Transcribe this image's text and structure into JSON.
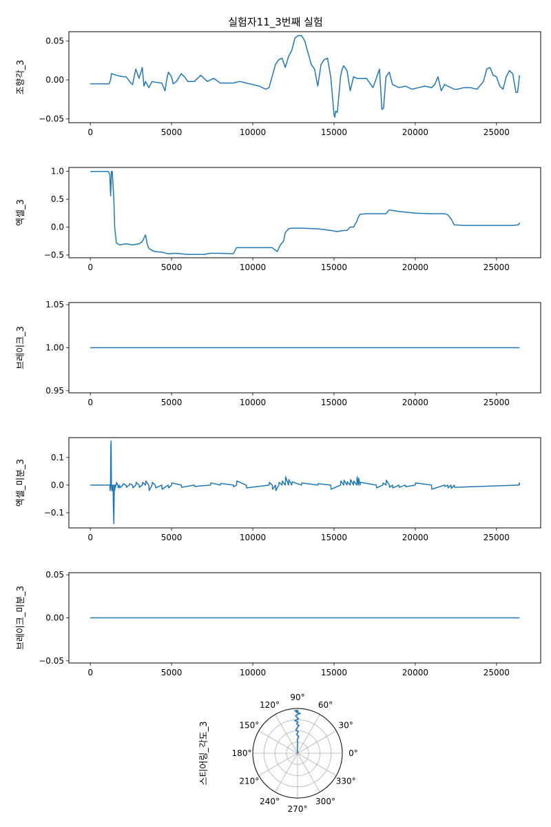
{
  "figure_title": "실험자11_3번째 실험",
  "chart_data": [
    {
      "type": "line",
      "ylabel": "조향각_3",
      "xlim": [
        -1320,
        27720
      ],
      "ylim": [
        -0.055,
        0.062
      ],
      "xticks": [
        0,
        5000,
        10000,
        15000,
        20000,
        25000
      ],
      "xtick_labels": [
        "0",
        "5000",
        "10000",
        "15000",
        "20000",
        "25000"
      ],
      "yticks": [
        -0.05,
        0.0,
        0.05
      ],
      "ytick_labels": [
        "−0.05",
        "0.00",
        "0.05"
      ],
      "color": "#1f77b4",
      "series": [
        {
          "x": [
            0,
            1150,
            1250,
            1300,
            1600,
            2000,
            2200,
            2500,
            2600,
            2700,
            2800,
            3000,
            3200,
            3300,
            3400,
            3600,
            3800,
            4000,
            4400,
            4600,
            4700,
            4800,
            5000,
            5100,
            5300,
            5600,
            5800,
            6000,
            6400,
            6800,
            7200,
            7600,
            8000,
            8400,
            8800,
            9200,
            9600,
            10000,
            10400,
            10800,
            11000,
            11200,
            11400,
            11600,
            11800,
            12000,
            12200,
            12400,
            12600,
            12800,
            13000,
            13200,
            13600,
            13800,
            14000,
            14200,
            14400,
            14600,
            14800,
            15000,
            15050,
            15100,
            15200,
            15300,
            15400,
            15500,
            15600,
            15800,
            16000,
            16200,
            16400,
            16600,
            17000,
            17400,
            17800,
            17950,
            18050,
            18200,
            18400,
            18600,
            19000,
            19400,
            19800,
            20200,
            20600,
            21000,
            21200,
            21400,
            21600,
            21800,
            22000,
            22200,
            22400,
            22600,
            23000,
            23400,
            23800,
            24200,
            24400,
            24600,
            24800,
            25000,
            25200,
            25400,
            25600,
            25800,
            26000,
            26200,
            26300,
            26420
          ],
          "y": [
            -0.005,
            -0.005,
            0.0,
            0.008,
            0.006,
            0.004,
            0.004,
            -0.004,
            -0.006,
            0.004,
            0.014,
            0.002,
            0.016,
            -0.008,
            -0.002,
            -0.01,
            -0.002,
            -0.003,
            -0.004,
            -0.014,
            0.0,
            0.01,
            0.004,
            -0.005,
            -0.002,
            0.008,
            0.004,
            -0.002,
            -0.002,
            0.006,
            -0.002,
            0.002,
            -0.004,
            -0.004,
            -0.004,
            -0.002,
            -0.004,
            -0.006,
            -0.008,
            -0.012,
            -0.01,
            0.005,
            0.02,
            0.026,
            0.028,
            0.016,
            0.03,
            0.038,
            0.054,
            0.057,
            0.057,
            0.05,
            0.02,
            0.014,
            -0.008,
            0.02,
            0.026,
            0.028,
            0.004,
            -0.045,
            -0.048,
            -0.04,
            -0.042,
            -0.02,
            0.004,
            0.014,
            0.018,
            0.012,
            -0.014,
            0.004,
            0.002,
            0.002,
            0.002,
            -0.01,
            0.014,
            -0.038,
            -0.036,
            0.004,
            0.01,
            -0.006,
            -0.01,
            -0.008,
            -0.012,
            -0.01,
            -0.008,
            -0.01,
            -0.006,
            0.004,
            -0.014,
            -0.006,
            -0.008,
            -0.01,
            -0.012,
            -0.012,
            -0.01,
            -0.01,
            -0.012,
            -0.002,
            0.014,
            0.016,
            0.006,
            0.004,
            -0.008,
            -0.012,
            0.004,
            0.012,
            0.008,
            -0.016,
            -0.016,
            0.006
          ]
        }
      ]
    },
    {
      "type": "line",
      "ylabel": "엑셀_3",
      "xlim": [
        -1320,
        27720
      ],
      "ylim": [
        -0.55,
        1.07
      ],
      "xticks": [
        0,
        5000,
        10000,
        15000,
        20000,
        25000
      ],
      "xtick_labels": [
        "0",
        "5000",
        "10000",
        "15000",
        "20000",
        "25000"
      ],
      "yticks": [
        -0.5,
        0.0,
        0.5,
        1.0
      ],
      "ytick_labels": [
        "−0.5",
        "0.0",
        "0.5",
        "1.0"
      ],
      "color": "#1f77b4",
      "series": [
        {
          "x": [
            0,
            1100,
            1200,
            1250,
            1300,
            1350,
            1450,
            1500,
            1600,
            1800,
            2200,
            2600,
            3000,
            3200,
            3400,
            3500,
            3600,
            3800,
            4000,
            4400,
            4800,
            5200,
            6000,
            7000,
            7400,
            8000,
            8800,
            9000,
            9200,
            10000,
            10800,
            11200,
            11500,
            11700,
            11900,
            12000,
            12200,
            12400,
            13000,
            14000,
            14800,
            15000,
            15200,
            15600,
            15800,
            16000,
            16200,
            16400,
            16500,
            16600,
            17000,
            17600,
            18000,
            18200,
            18400,
            19000,
            20000,
            21000,
            21800,
            22000,
            22200,
            22400,
            23000,
            24000,
            25000,
            26000,
            26350,
            26400,
            26420
          ],
          "y": [
            1.0,
            1.0,
            0.95,
            0.56,
            1.0,
            1.0,
            0.5,
            0.0,
            -0.28,
            -0.32,
            -0.3,
            -0.32,
            -0.3,
            -0.26,
            -0.14,
            -0.3,
            -0.38,
            -0.42,
            -0.44,
            -0.45,
            -0.48,
            -0.47,
            -0.49,
            -0.49,
            -0.47,
            -0.47,
            -0.48,
            -0.37,
            -0.37,
            -0.37,
            -0.37,
            -0.37,
            -0.44,
            -0.32,
            -0.25,
            -0.1,
            -0.03,
            -0.02,
            -0.02,
            -0.03,
            -0.06,
            -0.07,
            -0.08,
            -0.06,
            -0.06,
            0.0,
            0.0,
            0.1,
            0.18,
            0.23,
            0.24,
            0.24,
            0.24,
            0.24,
            0.31,
            0.28,
            0.25,
            0.24,
            0.24,
            0.22,
            0.15,
            0.04,
            0.03,
            0.03,
            0.03,
            0.03,
            0.04,
            0.07,
            0.05
          ]
        }
      ]
    },
    {
      "type": "line",
      "ylabel": "브레이크_3",
      "xlim": [
        -1320,
        27720
      ],
      "ylim": [
        0.9475,
        1.0525
      ],
      "xticks": [
        0,
        5000,
        10000,
        15000,
        20000,
        25000
      ],
      "xtick_labels": [
        "0",
        "5000",
        "10000",
        "15000",
        "20000",
        "25000"
      ],
      "yticks": [
        0.95,
        1.0,
        1.05
      ],
      "ytick_labels": [
        "0.95",
        "1.00",
        "1.05"
      ],
      "color": "#1f77b4",
      "series": [
        {
          "x": [
            0,
            26420
          ],
          "y": [
            1.0,
            1.0
          ]
        }
      ]
    },
    {
      "type": "line",
      "ylabel": "엑셀_미분_3",
      "xlim": [
        -1320,
        27720
      ],
      "ylim": [
        -0.155,
        0.172
      ],
      "xticks": [
        0,
        5000,
        10000,
        15000,
        20000,
        25000
      ],
      "xtick_labels": [
        "0",
        "5000",
        "10000",
        "15000",
        "20000",
        "25000"
      ],
      "yticks": [
        -0.1,
        0.0,
        0.1
      ],
      "ytick_labels": [
        "−0.1",
        "0.0",
        "0.1"
      ],
      "color": "#1f77b4",
      "series": [
        {
          "x": [
            0,
            1200,
            1220,
            1240,
            1260,
            1280,
            1300,
            1320,
            1340,
            1360,
            1400,
            1420,
            1450,
            1480,
            1500,
            1520,
            1540,
            1560,
            1600,
            1620,
            1700,
            1720,
            1800,
            1820,
            2000,
            2020,
            2200,
            2220,
            2400,
            2420,
            2600,
            2620,
            2800,
            2820,
            3000,
            3020,
            3200,
            3220,
            3400,
            3420,
            3600,
            3620,
            3800,
            3820,
            4000,
            4020,
            4400,
            4420,
            4800,
            4820,
            5000,
            5020,
            5600,
            5620,
            6400,
            6420,
            7400,
            7420,
            8000,
            8020,
            8800,
            8820,
            9000,
            9020,
            9600,
            9620,
            11000,
            11020,
            11200,
            11220,
            11400,
            11420,
            11600,
            11620,
            11800,
            11820,
            12000,
            12020,
            12200,
            12220,
            12400,
            12420,
            13000,
            13020,
            14000,
            14020,
            14800,
            14820,
            15400,
            15420,
            15600,
            15620,
            15800,
            15820,
            16000,
            16020,
            16200,
            16220,
            16400,
            16420,
            16500,
            16520,
            16600,
            16620,
            17600,
            17620,
            18000,
            18020,
            18200,
            18220,
            18400,
            18420,
            18600,
            18620,
            19000,
            19020,
            19400,
            19420,
            20000,
            20020,
            21000,
            21020,
            21800,
            21820,
            22000,
            22020,
            22200,
            22220,
            22400,
            22420,
            26380,
            26400,
            26420
          ],
          "y": [
            0.0,
            0.0,
            -0.02,
            0.0,
            0.14,
            0.16,
            0.0,
            -0.02,
            0.0,
            -0.02,
            0.0,
            -0.08,
            -0.14,
            0.0,
            -0.02,
            0.0,
            -0.01,
            0.0,
            0.0,
            0.01,
            0.0,
            -0.01,
            0.0,
            -0.01,
            0.0,
            0.005,
            0.0,
            -0.008,
            0.0,
            0.005,
            0.0,
            -0.01,
            0.0,
            0.01,
            0.0,
            -0.008,
            0.0,
            0.01,
            0.0,
            0.015,
            0.0,
            -0.02,
            0.0,
            0.01,
            0.0,
            -0.01,
            0.0,
            -0.015,
            0.0,
            -0.01,
            0.0,
            0.008,
            0.0,
            -0.008,
            0.0,
            -0.005,
            0.0,
            0.008,
            0.0,
            0.006,
            0.0,
            -0.006,
            0.0,
            0.015,
            0.0,
            -0.01,
            0.0,
            0.01,
            0.0,
            -0.015,
            0.0,
            -0.02,
            0.0,
            0.01,
            0.0,
            0.015,
            0.0,
            0.03,
            0.0,
            0.02,
            0.0,
            0.012,
            0.0,
            0.008,
            0.0,
            0.005,
            0.0,
            -0.015,
            0.0,
            0.015,
            0.0,
            0.018,
            0.0,
            0.012,
            0.0,
            0.02,
            0.0,
            0.015,
            0.0,
            0.03,
            0.0,
            0.025,
            0.0,
            0.01,
            0.0,
            -0.01,
            0.0,
            0.008,
            0.0,
            0.018,
            0.0,
            -0.008,
            0.0,
            -0.01,
            0.0,
            -0.008,
            0.0,
            -0.006,
            0.0,
            0.008,
            0.0,
            -0.015,
            0.0,
            -0.005,
            0.0,
            -0.01,
            0.0,
            -0.012,
            0.0,
            -0.008,
            0.0,
            0.008,
            0.0
          ]
        }
      ]
    },
    {
      "type": "line",
      "ylabel": "브레이크_미분_3",
      "xlim": [
        -1320,
        27720
      ],
      "ylim": [
        -0.0525,
        0.0525
      ],
      "xticks": [
        0,
        5000,
        10000,
        15000,
        20000,
        25000
      ],
      "xtick_labels": [
        "0",
        "5000",
        "10000",
        "15000",
        "20000",
        "25000"
      ],
      "yticks": [
        -0.05,
        0.0,
        0.05
      ],
      "ytick_labels": [
        "−0.05",
        "0.00",
        "0.05"
      ],
      "color": "#1f77b4",
      "series": [
        {
          "x": [
            0,
            26420
          ],
          "y": [
            0.0,
            0.0
          ]
        }
      ]
    },
    {
      "type": "polar",
      "ylabel": "스티어링_각도_3",
      "theta_tick_labels": [
        "0°",
        "30°",
        "60°",
        "90°",
        "120°",
        "150°",
        "180°",
        "210°",
        "240°",
        "270°",
        "300°",
        "330°"
      ],
      "theta_ticks_deg": [
        0,
        30,
        60,
        90,
        120,
        150,
        180,
        210,
        240,
        270,
        300,
        330
      ],
      "radial_gridlines": 4,
      "color": "#1f77b4",
      "series": [
        {
          "theta_deg": [
            90,
            92,
            89,
            91,
            86,
            93,
            88,
            94,
            90,
            87,
            92,
            89,
            95,
            88,
            91,
            93,
            90,
            86,
            92,
            89,
            94,
            90
          ],
          "r": [
            0.0,
            0.12,
            0.22,
            0.3,
            0.38,
            0.42,
            0.48,
            0.52,
            0.58,
            0.62,
            0.66,
            0.7,
            0.73,
            0.77,
            0.8,
            0.84,
            0.87,
            0.89,
            0.92,
            0.94,
            0.95,
            0.96
          ]
        }
      ]
    }
  ]
}
